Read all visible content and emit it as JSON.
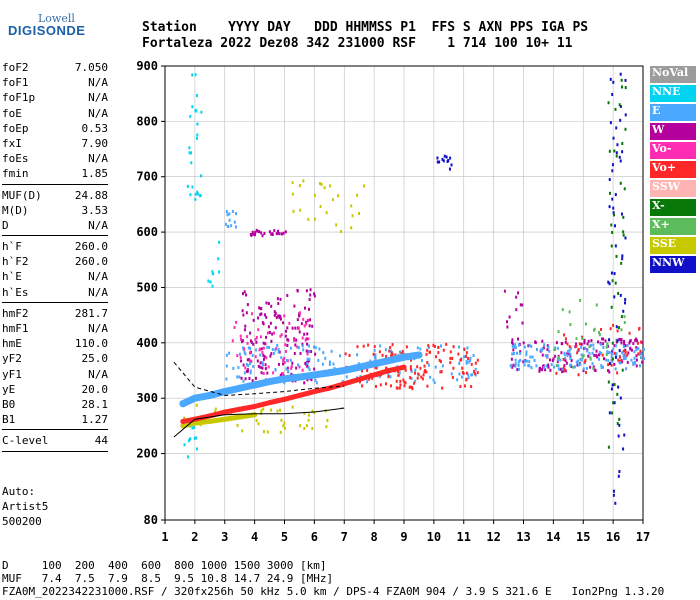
{
  "logo": {
    "line1": "Lowell",
    "line2": "DIGISONDE"
  },
  "header": {
    "labels": "Station    YYYY DAY   DDD HHMMSS P1  FFS S AXN PPS IGA PS",
    "values": "Fortaleza 2022 Dez08 342 231000 RSF    1 714 100 10+ 11"
  },
  "params": [
    {
      "k": "foF2",
      "v": "7.050"
    },
    {
      "k": "foF1",
      "v": "N/A"
    },
    {
      "k": "foF1p",
      "v": "N/A"
    },
    {
      "k": "foE",
      "v": "N/A"
    },
    {
      "k": "foEp",
      "v": "0.53"
    },
    {
      "k": "fxI",
      "v": "7.90"
    },
    {
      "k": "foEs",
      "v": "N/A"
    },
    {
      "k": "fmin",
      "v": "1.85"
    },
    {
      "sep": true
    },
    {
      "k": "MUF(D)",
      "v": "24.88"
    },
    {
      "k": "M(D)",
      "v": "3.53"
    },
    {
      "k": "D",
      "v": "N/A"
    },
    {
      "sep": true
    },
    {
      "k": "h`F",
      "v": "260.0"
    },
    {
      "k": "h`F2",
      "v": "260.0"
    },
    {
      "k": "h`E",
      "v": "N/A"
    },
    {
      "k": "h`Es",
      "v": "N/A"
    },
    {
      "sep": true
    },
    {
      "k": "hmF2",
      "v": "281.7"
    },
    {
      "k": "hmF1",
      "v": "N/A"
    },
    {
      "k": "hmE",
      "v": "110.0"
    },
    {
      "k": "yF2",
      "v": "25.0"
    },
    {
      "k": "yF1",
      "v": "N/A"
    },
    {
      "k": "yE",
      "v": "20.0"
    },
    {
      "k": "B0",
      "v": "28.1"
    },
    {
      "k": "B1",
      "v": "1.27"
    },
    {
      "sep": true
    },
    {
      "k": "C-level",
      "v": "44"
    },
    {
      "sep": true
    }
  ],
  "auto": [
    "Auto:",
    "Artist5",
    "500200"
  ],
  "legend": [
    {
      "name": "NoVal",
      "color": "#9c9c9c"
    },
    {
      "name": "NNE",
      "color": "#00d4f0"
    },
    {
      "name": "E",
      "color": "#4aa8ff"
    },
    {
      "name": "W",
      "color": "#b4009c"
    },
    {
      "name": "Vo-",
      "color": "#ff2cb4"
    },
    {
      "name": "Vo+",
      "color": "#ff2828"
    },
    {
      "name": "SSW",
      "color": "#ffb4b4"
    },
    {
      "name": "X-",
      "color": "#087808"
    },
    {
      "name": "X+",
      "color": "#5cbc5c"
    },
    {
      "name": "SSE",
      "color": "#c8c800"
    },
    {
      "name": "NNW",
      "color": "#1010c8"
    }
  ],
  "footer": {
    "line1": "D     100  200  400  600  800 1000 1500 3000 [km]",
    "line2": "MUF   7.4  7.5  7.9  8.5  9.5 10.8 14.7 24.9 [MHz]",
    "line3": "FZA0M_2022342231000.RSF / 320fx256h 50 kHz 5.0 km / DPS-4 FZA0M 904 / 3.9 S 321.6 E   Ion2Png 1.3.20"
  },
  "chart_data": {
    "type": "scatter",
    "xlim": [
      1,
      17
    ],
    "ylim": [
      80,
      900
    ],
    "xticks": [
      1,
      2,
      3,
      4,
      5,
      6,
      7,
      8,
      9,
      10,
      11,
      12,
      13,
      14,
      15,
      16,
      17
    ],
    "yticks": [
      80,
      200,
      300,
      400,
      500,
      600,
      700,
      800,
      900
    ],
    "grid": true,
    "trace_main": {
      "color": "#4aa8ff",
      "x": [
        1.6,
        2.0,
        2.5,
        3.0,
        3.5,
        4.0,
        4.5,
        5.0,
        5.5,
        6.0,
        6.5,
        7.0,
        7.5,
        8.0,
        8.5,
        9.0,
        9.5
      ],
      "y": [
        290,
        300,
        305,
        312,
        318,
        324,
        330,
        335,
        338,
        342,
        346,
        350,
        356,
        362,
        368,
        374,
        378
      ]
    },
    "trace_red": {
      "color": "#ff2828",
      "x": [
        1.6,
        2.0,
        2.5,
        3.0,
        3.5,
        4.0,
        4.5,
        5.0,
        5.5,
        6.0,
        6.5,
        7.0,
        7.5,
        8.0,
        8.5,
        9.0
      ],
      "y": [
        258,
        262,
        268,
        275,
        280,
        285,
        292,
        298,
        305,
        312,
        318,
        326,
        334,
        342,
        350,
        356
      ]
    },
    "trace_yellow": {
      "color": "#c8c800",
      "x": [
        1.6,
        2.0,
        2.5,
        3.0,
        3.5,
        4.0
      ],
      "y": [
        250,
        255,
        258,
        262,
        266,
        270
      ]
    },
    "model_upper": {
      "x": [
        1.3,
        2.0,
        3.0,
        4.0,
        5.0,
        6.0,
        7.0
      ],
      "y": [
        365,
        320,
        305,
        308,
        312,
        318,
        322
      ]
    },
    "model_lower": {
      "x": [
        1.3,
        2.0,
        3.0,
        4.0,
        5.0,
        6.0,
        7.0,
        6.9
      ],
      "y": [
        230,
        262,
        270,
        272,
        272,
        275,
        282,
        282
      ]
    },
    "clusters": [
      {
        "color": "#b4009c",
        "x": [
          3.5,
          6.0
        ],
        "y": [
          330,
          500
        ],
        "n": 160
      },
      {
        "color": "#ff2cb4",
        "x": [
          3.2,
          5.8
        ],
        "y": [
          340,
          460
        ],
        "n": 60
      },
      {
        "color": "#4aa8ff",
        "x": [
          3.0,
          11.5
        ],
        "y": [
          330,
          400
        ],
        "n": 150
      },
      {
        "color": "#ff2828",
        "x": [
          7.0,
          11.5
        ],
        "y": [
          320,
          400
        ],
        "n": 140
      },
      {
        "color": "#b4009c",
        "x": [
          12.5,
          17.0
        ],
        "y": [
          350,
          410
        ],
        "n": 130
      },
      {
        "color": "#4aa8ff",
        "x": [
          12.5,
          17.0
        ],
        "y": [
          355,
          400
        ],
        "n": 140
      },
      {
        "color": "#ff2828",
        "x": [
          14.0,
          17.0
        ],
        "y": [
          340,
          440
        ],
        "n": 40
      },
      {
        "color": "#5cbc5c",
        "x": [
          14.0,
          16.5
        ],
        "y": [
          350,
          480
        ],
        "n": 30
      },
      {
        "color": "#c8c800",
        "x": [
          1.6,
          6.5
        ],
        "y": [
          240,
          290
        ],
        "n": 40
      },
      {
        "color": "#1010c8",
        "x": [
          15.8,
          16.4
        ],
        "y": [
          100,
          900
        ],
        "n": 60
      },
      {
        "color": "#087808",
        "x": [
          15.8,
          16.4
        ],
        "y": [
          200,
          880
        ],
        "n": 40
      },
      {
        "color": "#b4009c",
        "x": [
          3.8,
          5.2
        ],
        "y": [
          596,
          606
        ],
        "n": 25
      },
      {
        "color": "#4aa8ff",
        "x": [
          3.0,
          3.4
        ],
        "y": [
          610,
          640
        ],
        "n": 12
      },
      {
        "color": "#c8c800",
        "x": [
          5.2,
          7.8
        ],
        "y": [
          600,
          700
        ],
        "n": 25
      },
      {
        "color": "#00d4f0",
        "x": [
          1.7,
          2.2
        ],
        "y": [
          650,
          900
        ],
        "n": 25
      },
      {
        "color": "#1010c8",
        "x": [
          10.0,
          10.6
        ],
        "y": [
          715,
          740
        ],
        "n": 12
      },
      {
        "color": "#00d4f0",
        "x": [
          1.6,
          2.1
        ],
        "y": [
          190,
          260
        ],
        "n": 12
      },
      {
        "color": "#00d4f0",
        "x": [
          2.4,
          2.8
        ],
        "y": [
          500,
          600
        ],
        "n": 8
      },
      {
        "color": "#b4009c",
        "x": [
          12.3,
          13.0
        ],
        "y": [
          430,
          500
        ],
        "n": 10
      }
    ]
  }
}
